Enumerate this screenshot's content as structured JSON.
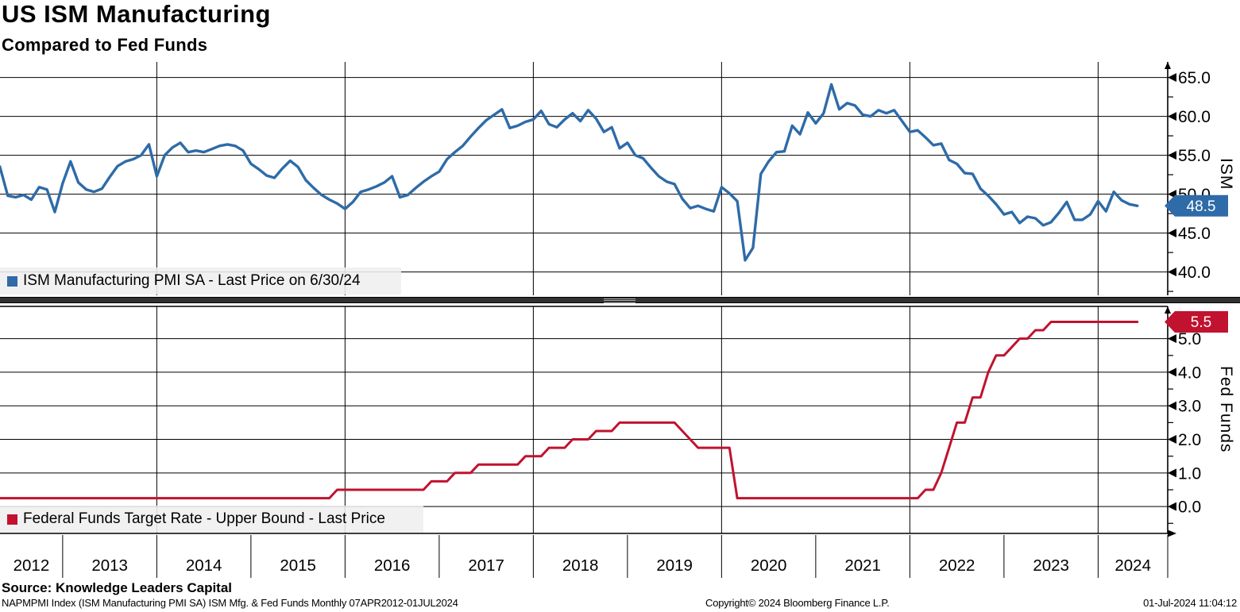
{
  "header": {
    "title": "US ISM Manufacturing",
    "subtitle": "Compared to Fed Funds"
  },
  "legends": {
    "top": "ISM Manufacturing PMI SA - Last Price on 6/30/24",
    "bottom": "Federal Funds Target Rate - Upper Bound - Last Price"
  },
  "axis_titles": {
    "top": "ISM",
    "bottom": "Fed Funds"
  },
  "footer": {
    "source": "Source: Knowledge Leaders Capital",
    "description": "NAPMPMI Index (ISM Manufacturing PMI SA) ISM Mfg. & Fed Funds  Monthly 07APR2012-01JUL2024",
    "copyright": "Copyright© 2024 Bloomberg Finance L.P.",
    "timestamp": "01-Jul-2024 11:04:12"
  },
  "x_axis": {
    "years": [
      "2012",
      "2013",
      "2014",
      "2015",
      "2016",
      "2017",
      "2018",
      "2019",
      "2020",
      "2021",
      "2022",
      "2023",
      "2024"
    ],
    "gridline_years": [
      2014,
      2016,
      2018,
      2020,
      2022,
      2024
    ],
    "range_start": "07APR2012",
    "range_end": "01JUL2024"
  },
  "chart_data": [
    {
      "type": "line",
      "name": "ISM Manufacturing PMI SA",
      "color": "#2E6BA8",
      "freq": "monthly",
      "start": "2012-04",
      "end": "2024-06",
      "ylim": [
        37.0,
        67.0
      ],
      "yticks": [
        40,
        45,
        50,
        55,
        60,
        65
      ],
      "ytick_labels": [
        "40.0",
        "45.0",
        "50.0",
        "55.0",
        "60.0",
        "65.0"
      ],
      "minor_step": 2.5,
      "last_price": 48.5,
      "last_price_label": "48.5",
      "values": [
        54.8,
        53.5,
        49.8,
        49.6,
        49.9,
        49.3,
        50.9,
        50.6,
        47.7,
        51.4,
        54.2,
        51.5,
        50.6,
        50.3,
        50.7,
        52.2,
        53.6,
        54.2,
        54.5,
        55.0,
        56.4,
        52.3,
        55.0,
        56.0,
        56.6,
        55.4,
        55.6,
        55.4,
        55.8,
        56.2,
        56.4,
        56.2,
        55.6,
        53.9,
        53.2,
        52.4,
        52.1,
        53.3,
        54.3,
        53.5,
        51.8,
        50.8,
        49.9,
        49.3,
        48.8,
        48.1,
        49.0,
        50.3,
        50.6,
        51.0,
        51.5,
        52.3,
        49.6,
        49.9,
        50.8,
        51.6,
        52.3,
        52.9,
        54.5,
        55.4,
        56.2,
        57.4,
        58.5,
        59.5,
        60.2,
        60.9,
        58.5,
        58.8,
        59.3,
        59.6,
        60.7,
        59.0,
        58.6,
        59.6,
        60.4,
        59.4,
        60.8,
        59.7,
        58.0,
        58.6,
        55.9,
        56.6,
        55.0,
        54.6,
        53.4,
        52.3,
        51.6,
        51.3,
        49.4,
        48.2,
        48.5,
        48.1,
        47.8,
        50.9,
        50.1,
        49.1,
        41.5,
        43.1,
        52.6,
        54.2,
        55.4,
        55.5,
        58.8,
        57.7,
        60.5,
        59.1,
        60.4,
        64.1,
        60.9,
        61.7,
        61.4,
        60.2,
        60.0,
        60.8,
        60.4,
        60.8,
        59.4,
        58.0,
        58.2,
        57.3,
        56.3,
        56.5,
        54.4,
        53.9,
        52.7,
        52.6,
        50.7,
        49.8,
        48.7,
        47.4,
        47.7,
        46.3,
        47.1,
        46.9,
        46.0,
        46.4,
        47.6,
        49.0,
        46.7,
        46.7,
        47.4,
        49.1,
        47.8,
        50.3,
        49.2,
        48.7,
        48.5
      ]
    },
    {
      "type": "line",
      "name": "Federal Funds Target Rate - Upper Bound",
      "color": "#C1122F",
      "freq": "monthly",
      "start": "2012-04",
      "end": "2024-06",
      "ylim": [
        -0.8,
        5.96
      ],
      "yticks": [
        0,
        1,
        2,
        3,
        4,
        5
      ],
      "ytick_labels": [
        "0.0",
        "1.0",
        "2.0",
        "3.0",
        "4.0",
        "5.0"
      ],
      "minor_step": 0.5,
      "last_price": 5.5,
      "last_price_label": "5.5",
      "values": [
        0.25,
        0.25,
        0.25,
        0.25,
        0.25,
        0.25,
        0.25,
        0.25,
        0.25,
        0.25,
        0.25,
        0.25,
        0.25,
        0.25,
        0.25,
        0.25,
        0.25,
        0.25,
        0.25,
        0.25,
        0.25,
        0.25,
        0.25,
        0.25,
        0.25,
        0.25,
        0.25,
        0.25,
        0.25,
        0.25,
        0.25,
        0.25,
        0.25,
        0.25,
        0.25,
        0.25,
        0.25,
        0.25,
        0.25,
        0.25,
        0.25,
        0.25,
        0.25,
        0.25,
        0.5,
        0.5,
        0.5,
        0.5,
        0.5,
        0.5,
        0.5,
        0.5,
        0.5,
        0.5,
        0.5,
        0.5,
        0.75,
        0.75,
        0.75,
        1.0,
        1.0,
        1.0,
        1.25,
        1.25,
        1.25,
        1.25,
        1.25,
        1.25,
        1.5,
        1.5,
        1.5,
        1.75,
        1.75,
        1.75,
        2.0,
        2.0,
        2.0,
        2.25,
        2.25,
        2.25,
        2.5,
        2.5,
        2.5,
        2.5,
        2.5,
        2.5,
        2.5,
        2.5,
        2.25,
        2.0,
        1.75,
        1.75,
        1.75,
        1.75,
        1.75,
        0.25,
        0.25,
        0.25,
        0.25,
        0.25,
        0.25,
        0.25,
        0.25,
        0.25,
        0.25,
        0.25,
        0.25,
        0.25,
        0.25,
        0.25,
        0.25,
        0.25,
        0.25,
        0.25,
        0.25,
        0.25,
        0.25,
        0.25,
        0.25,
        0.5,
        0.5,
        1.0,
        1.75,
        2.5,
        2.5,
        3.25,
        3.25,
        4.0,
        4.5,
        4.5,
        4.75,
        5.0,
        5.0,
        5.25,
        5.25,
        5.5,
        5.5,
        5.5,
        5.5,
        5.5,
        5.5,
        5.5,
        5.5,
        5.5,
        5.5,
        5.5,
        5.5
      ]
    }
  ]
}
